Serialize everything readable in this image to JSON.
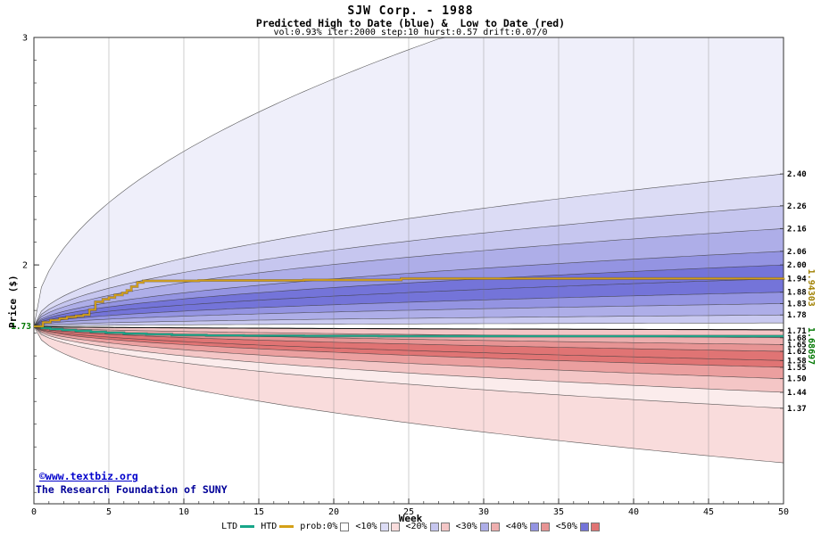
{
  "header": {
    "title": "SJW Corp. - 1988",
    "subtitle": "Predicted High to Date (blue) &  Low to Date (red)",
    "params": "vol:0.93% iter:2000 step:10 hurst:0.57 drift:0.07/0"
  },
  "watermark": {
    "line1": "©www.textbiz.org",
    "line2": "The Research Foundation of SUNY"
  },
  "axes": {
    "xlabel": "Week",
    "ylabel": "Price ($)"
  },
  "legend": {
    "ltd_label": "LTD",
    "htd_label": "HTD",
    "prob_label": "prob:0%",
    "prob_color": "#ffffff",
    "ltd_color": "#18a689",
    "htd_color": "#d4a017",
    "levels": [
      {
        "label": "<10%",
        "blue": "#dcdcf5",
        "red": "#f9dcdc"
      },
      {
        "label": "<20%",
        "blue": "#c6c6ef",
        "red": "#f4c6c6"
      },
      {
        "label": "<30%",
        "blue": "#aeaee8",
        "red": "#eeaeae"
      },
      {
        "label": "<40%",
        "blue": "#9494e2",
        "red": "#e79494"
      },
      {
        "label": "<50%",
        "blue": "#7474d9",
        "red": "#e07474"
      }
    ]
  },
  "chart_data": {
    "type": "area",
    "title": "SJW Corp. - 1988",
    "subtitle": "Predicted High to Date (blue) &  Low to Date (red)",
    "params": "vol:0.93% iter:2000 step:10 hurst:0.57 drift:0.07/0",
    "xlabel": "Week",
    "ylabel": "Price ($)",
    "xlim": [
      0,
      50
    ],
    "ylim": [
      0.95,
      3.0
    ],
    "x_ticks": [
      0,
      5,
      10,
      15,
      20,
      25,
      30,
      35,
      40,
      45,
      50
    ],
    "y_ticks": [
      {
        "value": 3,
        "label": "3"
      },
      {
        "value": 2,
        "label": "2"
      }
    ],
    "grid": "vertical",
    "legend_position": "bottom",
    "start_price": 1.73,
    "start_label": "1.73",
    "shape_exponent": 0.5,
    "high_fan": {
      "envelope_end": 3.45,
      "boundary_ends": [
        2.4,
        2.26,
        2.16,
        2.06,
        2.0,
        1.94,
        1.88,
        1.83,
        1.78,
        1.745
      ],
      "band_colors": [
        "#efeffa",
        "#dcdcf5",
        "#c6c6ef",
        "#aeaee8",
        "#9494e2",
        "#7474d9",
        "#7474d9",
        "#9494e2",
        "#aeaee8",
        "#c9c9f0"
      ],
      "right_labels": [
        "2.40",
        "2.26",
        "2.16",
        "2.06",
        "2.00",
        "1.94",
        "1.88",
        "1.83",
        "1.78"
      ]
    },
    "low_fan": {
      "envelope_end": 1.13,
      "boundary_ends": [
        1.715,
        1.68,
        1.65,
        1.62,
        1.58,
        1.55,
        1.5,
        1.44,
        1.37
      ],
      "band_colors": [
        "#f9dcdc",
        "#f4c6c6",
        "#eeaeae",
        "#e79494",
        "#e07474",
        "#e07474",
        "#eb9f9f",
        "#f4c6c6",
        "#fbecec"
      ],
      "right_labels": [
        "1.71",
        "1.68",
        "1.65",
        "1.62",
        "1.58",
        "1.55",
        "1.50",
        "1.44",
        "1.37"
      ]
    },
    "htd_line": {
      "name": "HTD",
      "color": "#d4a017",
      "final_label": "1.94303",
      "final_label_color": "#a08000",
      "points": [
        [
          0,
          1.73
        ],
        [
          0.6,
          1.748
        ],
        [
          1.1,
          1.757
        ],
        [
          1.7,
          1.764
        ],
        [
          2.2,
          1.771
        ],
        [
          2.8,
          1.776
        ],
        [
          3.3,
          1.781
        ],
        [
          3.7,
          1.803
        ],
        [
          4.1,
          1.838
        ],
        [
          4.6,
          1.849
        ],
        [
          5.0,
          1.857
        ],
        [
          5.4,
          1.868
        ],
        [
          5.9,
          1.877
        ],
        [
          6.2,
          1.888
        ],
        [
          6.5,
          1.905
        ],
        [
          6.9,
          1.923
        ],
        [
          7.3,
          1.93
        ],
        [
          11,
          1.932
        ],
        [
          18,
          1.934
        ],
        [
          24.5,
          1.94
        ],
        [
          50,
          1.94303
        ]
      ]
    },
    "ltd_line": {
      "name": "LTD",
      "color": "#18a689",
      "final_label": "1.68697",
      "final_label_color": "#007700",
      "points": [
        [
          0,
          1.73
        ],
        [
          0.5,
          1.723
        ],
        [
          1.1,
          1.718
        ],
        [
          1.9,
          1.714
        ],
        [
          2.8,
          1.71
        ],
        [
          3.8,
          1.706
        ],
        [
          4.8,
          1.702
        ],
        [
          6.0,
          1.698
        ],
        [
          7.5,
          1.695
        ],
        [
          9.2,
          1.692
        ],
        [
          11.5,
          1.69
        ],
        [
          14,
          1.689
        ],
        [
          18,
          1.688
        ],
        [
          23,
          1.687
        ],
        [
          50,
          1.68697
        ]
      ]
    }
  }
}
